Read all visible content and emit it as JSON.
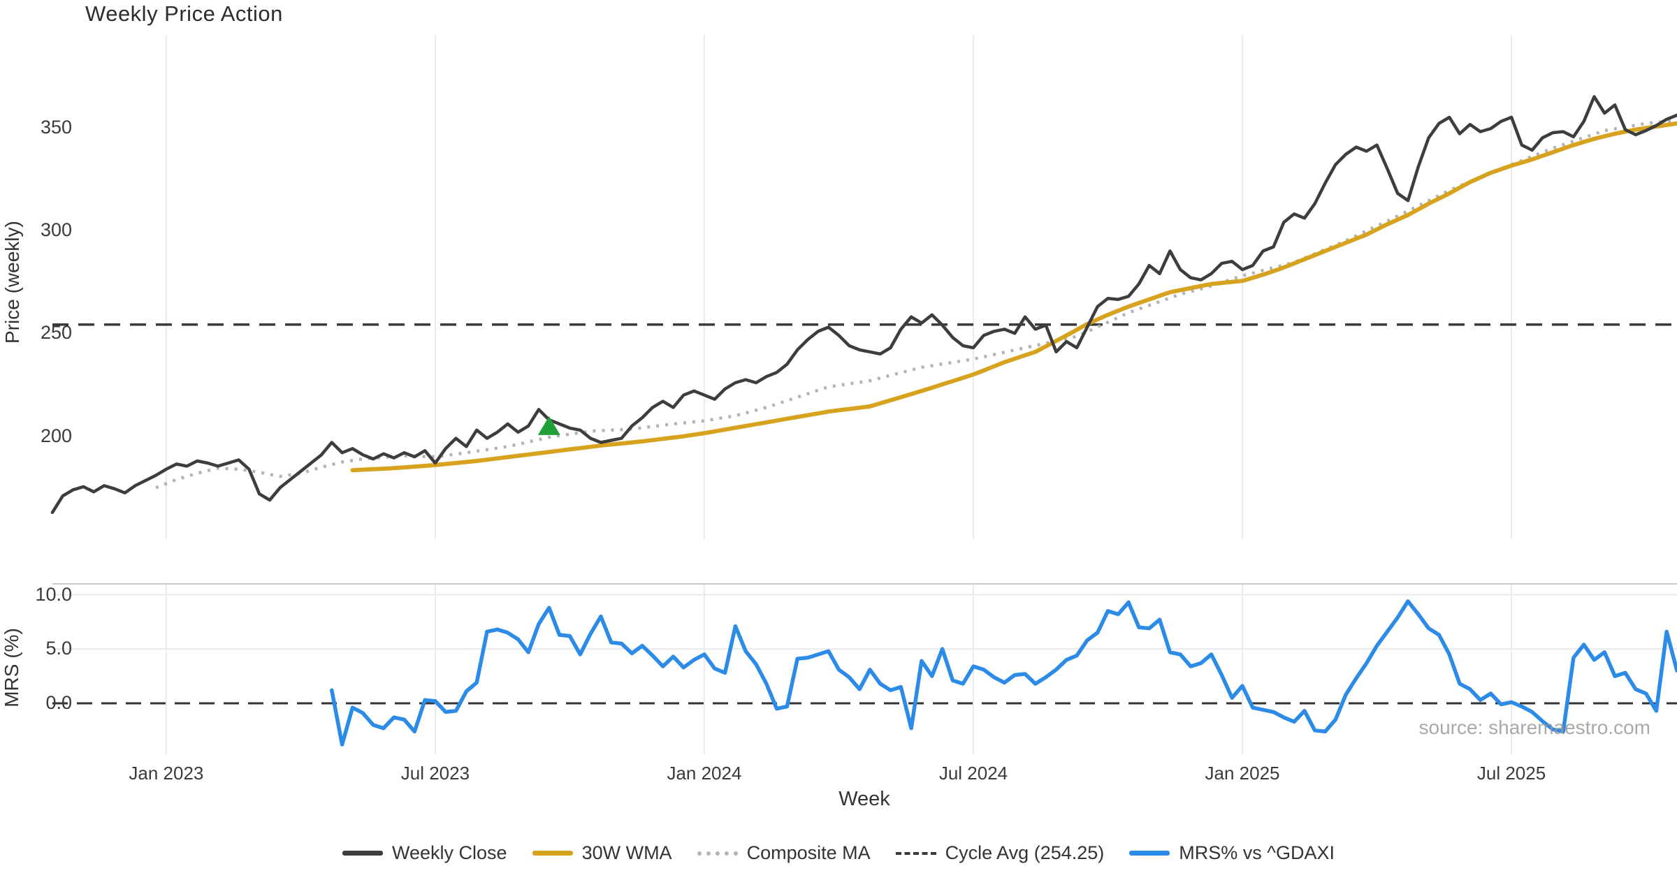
{
  "title": "Weekly Price Action",
  "watermark": "source: sharemaestro.com",
  "colors": {
    "weekly_close": "#3d3d3d",
    "wma_30w": "#d7a21e",
    "composite_ma": "#b3b3b3",
    "cycle_avg": "#3a3a3a",
    "mrs": "#2b8be6",
    "signal_marker": "#22a038",
    "gridline": "#ebebef",
    "panel_spine": "#c9c9c9",
    "hgrid": "#e9e9ed"
  },
  "chart_data": [
    {
      "panel": "price",
      "type": "line",
      "title": "Weekly Price Action",
      "xlabel": "Week",
      "ylabel": "Price (weekly)",
      "ylim": [
        150,
        395
      ],
      "yticks": [
        350,
        300,
        250,
        200
      ],
      "ytick_labels": [
        "350",
        "300",
        "250",
        "200"
      ],
      "grid": "vertical-only",
      "n_weeks": 158,
      "xticks": {
        "weeks": [
          11,
          37,
          63,
          89,
          115,
          141
        ],
        "labels": [
          "Jan 2023",
          "Jul 2023",
          "Jan 2024",
          "Jul 2024",
          "Jan 2025",
          "Jul 2025"
        ]
      },
      "series": [
        {
          "name": "Weekly Close",
          "style": "solid",
          "color": "#3d3d3d",
          "start_week": 0,
          "values": [
            163,
            171,
            174,
            175.5,
            173,
            176,
            174.5,
            172.5,
            176,
            178.5,
            181,
            184,
            186.5,
            185.5,
            188,
            187,
            185.5,
            187,
            188.5,
            184,
            172,
            169,
            175,
            179,
            183,
            187,
            191,
            197,
            192,
            194,
            191,
            189,
            191.5,
            189.5,
            192,
            190,
            193,
            187,
            194,
            199,
            195,
            203,
            199,
            202,
            206,
            202,
            205,
            213,
            208,
            206,
            204,
            203,
            199,
            197,
            198,
            199,
            205,
            209,
            214,
            217,
            214,
            220,
            222,
            220,
            218,
            223,
            226,
            227.5,
            226,
            229,
            231,
            235,
            242,
            247,
            251,
            253,
            249,
            244,
            242,
            241,
            240,
            243,
            252,
            258,
            255,
            259,
            254,
            248,
            244,
            243,
            249,
            251,
            252,
            250,
            258,
            252,
            254,
            241,
            246,
            243,
            253,
            263,
            267,
            266.5,
            268,
            274,
            283,
            279,
            290,
            281,
            277,
            276,
            279,
            284,
            285,
            281,
            283,
            290,
            292,
            304,
            308,
            306,
            313,
            323,
            332,
            337,
            340.5,
            338.5,
            341.5,
            330,
            318,
            314.5,
            331,
            345,
            352,
            355,
            347,
            351.5,
            348,
            349.5,
            353,
            355,
            341.5,
            339,
            345,
            347.5,
            348,
            345.5,
            353,
            365,
            357,
            361,
            349,
            346.5,
            348.5,
            351,
            354,
            356
          ]
        },
        {
          "name": "30W WMA",
          "style": "solid",
          "color": "#d7a21e",
          "anchors": [
            [
              29,
              183.5
            ],
            [
              33,
              184.5
            ],
            [
              37,
              186
            ],
            [
              41,
              188
            ],
            [
              45,
              190.5
            ],
            [
              49,
              193
            ],
            [
              53,
              195.5
            ],
            [
              57,
              197.5
            ],
            [
              61,
              200
            ],
            [
              63,
              201.5
            ],
            [
              67,
              205
            ],
            [
              71,
              208.5
            ],
            [
              75,
              212
            ],
            [
              79,
              214.5
            ],
            [
              84,
              222
            ],
            [
              89,
              230
            ],
            [
              92,
              236
            ],
            [
              95,
              241
            ],
            [
              98,
              249
            ],
            [
              100,
              254.5
            ],
            [
              102,
              259
            ],
            [
              104,
              263
            ],
            [
              106,
              266.5
            ],
            [
              108,
              270
            ],
            [
              110,
              272
            ],
            [
              112,
              274
            ],
            [
              115,
              275.5
            ],
            [
              117,
              278.5
            ],
            [
              119,
              282
            ],
            [
              121,
              286
            ],
            [
              123,
              290
            ],
            [
              125,
              294
            ],
            [
              127,
              298
            ],
            [
              129,
              303
            ],
            [
              131,
              307.5
            ],
            [
              133,
              313
            ],
            [
              135,
              318
            ],
            [
              137,
              323.5
            ],
            [
              139,
              328
            ],
            [
              141,
              331.5
            ],
            [
              143,
              334.5
            ],
            [
              145,
              338
            ],
            [
              147,
              341.5
            ],
            [
              149,
              344.5
            ],
            [
              151,
              347
            ],
            [
              153,
              349
            ],
            [
              155,
              350.5
            ],
            [
              157,
              352
            ]
          ]
        },
        {
          "name": "Composite MA",
          "style": "dotted",
          "color": "#b3b3b3",
          "anchors": [
            [
              10,
              175
            ],
            [
              12,
              179
            ],
            [
              14,
              182
            ],
            [
              16,
              184.5
            ],
            [
              18,
              184
            ],
            [
              20,
              182.5
            ],
            [
              22,
              180.5
            ],
            [
              24,
              182
            ],
            [
              26,
              185
            ],
            [
              28,
              187.5
            ],
            [
              30,
              189
            ],
            [
              34,
              190.5
            ],
            [
              37,
              190
            ],
            [
              40,
              192
            ],
            [
              44,
              195
            ],
            [
              48,
              199.5
            ],
            [
              52,
              202.5
            ],
            [
              56,
              203.5
            ],
            [
              60,
              206
            ],
            [
              63,
              207.5
            ],
            [
              66,
              210
            ],
            [
              69,
              214
            ],
            [
              72,
              219
            ],
            [
              75,
              224
            ],
            [
              79,
              227
            ],
            [
              84,
              233.5
            ],
            [
              89,
              237.5
            ],
            [
              94,
              243
            ],
            [
              99,
              248.5
            ],
            [
              104,
              260
            ],
            [
              109,
              269
            ],
            [
              112,
              273
            ],
            [
              115,
              278
            ],
            [
              120,
              284.5
            ],
            [
              125,
              295
            ],
            [
              130,
              307
            ],
            [
              135,
              319.5
            ],
            [
              140,
              330
            ],
            [
              145,
              340
            ],
            [
              150,
              348.5
            ],
            [
              154,
              352
            ],
            [
              157,
              353.5
            ]
          ]
        },
        {
          "name": "Cycle Avg (254.25)",
          "style": "dashed",
          "color": "#3a3a3a",
          "hline_value": 254.25
        }
      ],
      "markers": [
        {
          "name": "buy-signal",
          "shape": "triangle-up",
          "color": "#22a038",
          "week": 48,
          "price": 204
        }
      ]
    },
    {
      "panel": "mrs",
      "type": "line",
      "xlabel": "Week",
      "ylabel": "MRS (%)",
      "ylim": [
        -4.7,
        11.0
      ],
      "yticks": [
        10.0,
        5.0,
        0.0
      ],
      "ytick_labels": [
        "10.0",
        "5.0",
        "0.0"
      ],
      "zero_line_style": "dashed",
      "grid": "both-light",
      "series": [
        {
          "name": "MRS% vs ^GDAXI",
          "style": "solid",
          "color": "#2b8be6",
          "start_week": 27,
          "values": [
            1.2,
            -3.8,
            -0.4,
            -0.9,
            -2.0,
            -2.3,
            -1.3,
            -1.5,
            -2.6,
            0.3,
            0.2,
            -0.8,
            -0.7,
            1.1,
            1.9,
            6.6,
            6.8,
            6.5,
            5.9,
            4.7,
            7.3,
            8.8,
            6.3,
            6.2,
            4.5,
            6.4,
            8.0,
            5.6,
            5.5,
            4.6,
            5.3,
            4.4,
            3.4,
            4.3,
            3.3,
            4.0,
            4.5,
            3.2,
            2.8,
            7.1,
            4.8,
            3.6,
            1.8,
            -0.5,
            -0.3,
            4.1,
            4.2,
            4.5,
            4.8,
            3.1,
            2.4,
            1.3,
            3.1,
            1.8,
            1.2,
            1.5,
            -2.3,
            3.9,
            2.5,
            5.0,
            2.1,
            1.8,
            3.4,
            3.1,
            2.4,
            1.9,
            2.6,
            2.7,
            1.8,
            2.4,
            3.1,
            4.0,
            4.4,
            5.8,
            6.5,
            8.5,
            8.2,
            9.3,
            7.0,
            6.9,
            7.7,
            4.7,
            4.5,
            3.4,
            3.7,
            4.5,
            2.6,
            0.5,
            1.6,
            -0.4,
            -0.6,
            -0.8,
            -1.3,
            -1.7,
            -0.7,
            -2.5,
            -2.6,
            -1.5,
            0.8,
            2.3,
            3.7,
            5.3,
            6.6,
            7.9,
            9.4,
            8.2,
            6.9,
            6.3,
            4.5,
            1.8,
            1.3,
            0.3,
            0.9,
            -0.1,
            0.1,
            -0.3,
            -0.8,
            -1.65,
            -2.4,
            -2.6,
            4.2,
            5.4,
            4.0,
            4.7,
            2.5,
            2.8,
            1.3,
            0.9,
            -0.7,
            6.6,
            3.0
          ]
        }
      ]
    }
  ],
  "legend": {
    "items": [
      {
        "label": "Weekly Close",
        "swatch": "solid",
        "color": "#3d3d3d"
      },
      {
        "label": "30W WMA",
        "swatch": "solid",
        "color": "#d7a21e"
      },
      {
        "label": "Composite MA",
        "swatch": "dotted",
        "color": "#b3b3b3"
      },
      {
        "label": "Cycle Avg (254.25)",
        "swatch": "dashed",
        "color": "#3a3a3a"
      },
      {
        "label": "MRS% vs ^GDAXI",
        "swatch": "solid",
        "color": "#2b8be6"
      }
    ]
  }
}
